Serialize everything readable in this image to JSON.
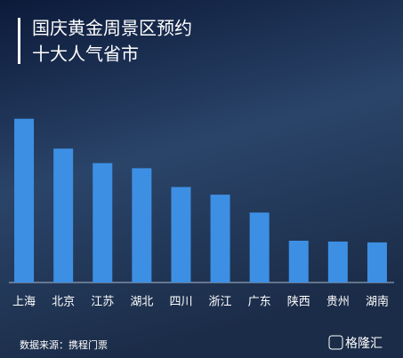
{
  "chart_data": {
    "type": "bar",
    "title": "国庆黄金周景区预约",
    "subtitle": "十大人气省市",
    "categories": [
      "上海",
      "北京",
      "江苏",
      "湖北",
      "四川",
      "浙江",
      "广东",
      "陕西",
      "贵州",
      "湖南"
    ],
    "values": [
      192,
      157,
      140,
      134,
      112,
      103,
      82,
      49,
      48,
      47
    ],
    "color": "#3d8fe3",
    "ylim": [
      0,
      200
    ],
    "source": "数据来源：携程门票",
    "watermark": "格隆汇"
  }
}
